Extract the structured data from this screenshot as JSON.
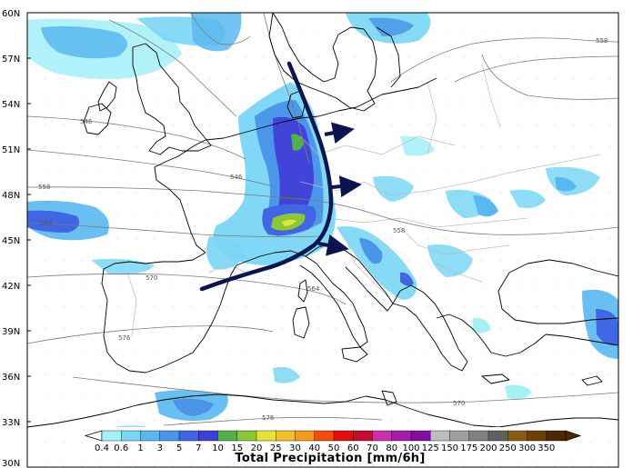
{
  "map": {
    "lat_labels": [
      "60N",
      "57N",
      "54N",
      "51N",
      "48N",
      "45N",
      "42N",
      "39N",
      "36N",
      "33N",
      "30N"
    ],
    "contour_labels": [
      "546",
      "546",
      "552",
      "558",
      "558",
      "558",
      "564",
      "564",
      "570",
      "570",
      "576",
      "576"
    ],
    "colors": {
      "front": "#0a1550",
      "coast": "#000000",
      "contour": "#7a7a7a",
      "border": "#bbbbbb"
    }
  },
  "colorbar": {
    "title": "Total Precipitation [mm/6h]",
    "ticks": [
      "0.4",
      "0.6",
      "1",
      "3",
      "5",
      "7",
      "10",
      "15",
      "20",
      "25",
      "30",
      "40",
      "50",
      "60",
      "70",
      "80",
      "100",
      "125",
      "150",
      "175",
      "200",
      "250",
      "300",
      "350"
    ],
    "colors": [
      "#a8f0f8",
      "#7ad6f5",
      "#59b8f0",
      "#4a94ea",
      "#4066e4",
      "#3f3fd8",
      "#52b04a",
      "#8ac83a",
      "#e4e43a",
      "#f4c02c",
      "#f49a1c",
      "#f04e0c",
      "#e01010",
      "#c01030",
      "#cc30a8",
      "#a81aa8",
      "#8010a0",
      "#bdbdbd",
      "#a0a0a0",
      "#808080",
      "#606060",
      "#8a5a10",
      "#6e3e08",
      "#4c2804"
    ]
  }
}
